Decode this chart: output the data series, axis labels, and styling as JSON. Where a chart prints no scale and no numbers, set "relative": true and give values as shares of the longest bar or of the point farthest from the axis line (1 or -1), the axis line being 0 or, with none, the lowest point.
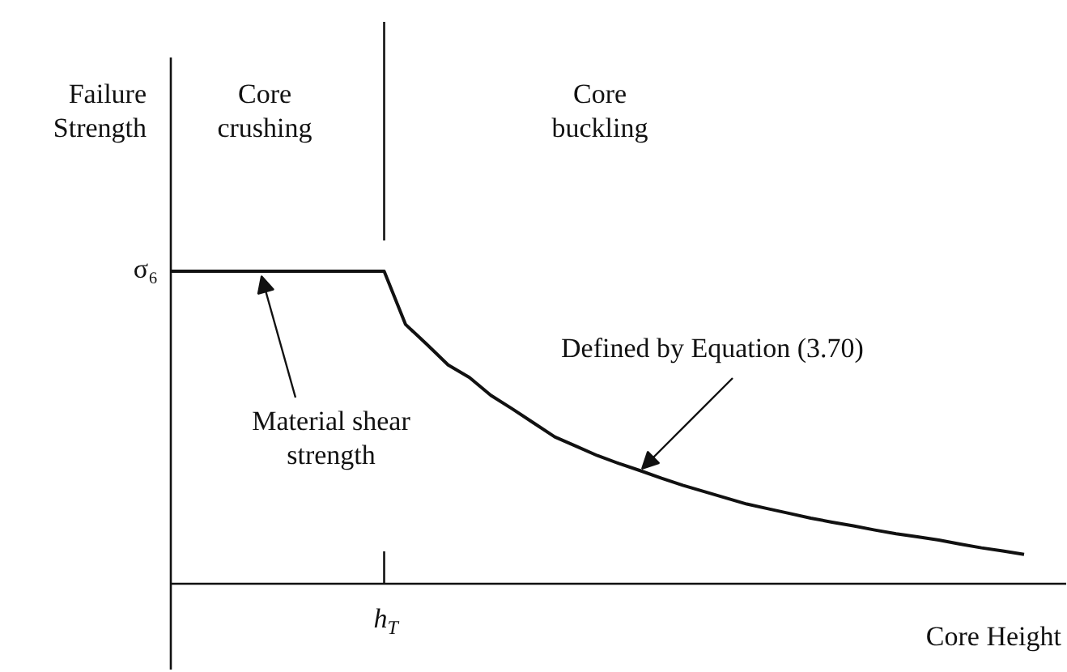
{
  "chart_data": {
    "type": "line",
    "relative": true,
    "xlabel": "Core Height",
    "ylabel": "Failure\nStrength",
    "categories": [
      null,
      null,
      null,
      null,
      null,
      null,
      null,
      null,
      null,
      null,
      null,
      null,
      null,
      null,
      null,
      null,
      null,
      null,
      null,
      null,
      null,
      null,
      null,
      null,
      null,
      null,
      null,
      null,
      null,
      null,
      null,
      null,
      null,
      null,
      null,
      null,
      null,
      null,
      null,
      null,
      null
    ],
    "series": [
      {
        "color": "#111111",
        "values": [
          1,
          1,
          1,
          1,
          1,
          1,
          1,
          1,
          1,
          1,
          1,
          0.83,
          0.766,
          0.7,
          0.66,
          0.603,
          0.56,
          0.515,
          0.47,
          0.44,
          0.41,
          0.385,
          0.362,
          0.338,
          0.315,
          0.295,
          0.275,
          0.255,
          0.24,
          0.225,
          0.21,
          0.197,
          0.185,
          0.172,
          0.16,
          0.15,
          0.14,
          0.127,
          0.115,
          0.105,
          0.094
        ]
      }
    ],
    "ref_lines": [
      {
        "axis": "x",
        "label": "h$_{T}$"
      }
    ],
    "annotations": [
      "σ₆",
      "Core\ncrushing",
      "Core\nbuckling",
      "Material shear\nstrength",
      "Defined by Equation (3.70)"
    ],
    "grid": false,
    "marker": "none",
    "line_style": "solid"
  }
}
